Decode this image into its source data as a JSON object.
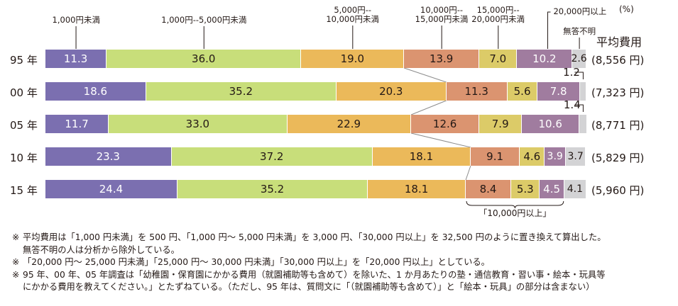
{
  "chart_data": {
    "type": "bar",
    "orientation": "horizontal-stacked-100",
    "unit_label": "(%)",
    "avg_header": "平均費用",
    "categories": [
      "95 年",
      "00 年",
      "05 年",
      "10 年",
      "15 年"
    ],
    "series": [
      {
        "name": "1,000円未満",
        "color": "#7b6fb0",
        "text_color": "#ffffff",
        "values": [
          11.3,
          18.6,
          11.7,
          23.3,
          24.4
        ]
      },
      {
        "name": "1,000円--5,000円未満",
        "color": "#c8de7a",
        "text_color": "#231815",
        "values": [
          36.0,
          35.2,
          33.0,
          37.2,
          35.2
        ]
      },
      {
        "name": "5,000円--10,000円未満",
        "color": "#ebb95a",
        "text_color": "#231815",
        "values": [
          19.0,
          20.3,
          22.9,
          18.1,
          18.1
        ]
      },
      {
        "name": "10,000円--15,000円未満",
        "color": "#db9470",
        "text_color": "#231815",
        "values": [
          13.9,
          11.3,
          12.6,
          9.1,
          8.4
        ]
      },
      {
        "name": "15,000円--20,000円未満",
        "color": "#dccb68",
        "text_color": "#231815",
        "values": [
          7.0,
          5.6,
          7.9,
          4.6,
          5.3
        ]
      },
      {
        "name": "20,000円以上",
        "color": "#a07c9f",
        "text_color": "#ffffff",
        "values": [
          10.2,
          7.8,
          10.6,
          3.9,
          4.5
        ]
      },
      {
        "name": "無答不明",
        "color": "#d3d3d5",
        "text_color": "#231815",
        "values": [
          2.6,
          1.2,
          1.4,
          3.7,
          4.1
        ]
      }
    ],
    "series_label_lines": [
      [
        "1,000円未満"
      ],
      [
        "1,000円--5,000円未満"
      ],
      [
        "5,000円--",
        "10,000円未満"
      ],
      [
        "10,000円--",
        "15,000円未満"
      ],
      [
        "15,000円--",
        "20,000円未満"
      ],
      [
        "20,000円以上"
      ],
      [
        "無答不明"
      ]
    ],
    "average_cost": [
      "(8,556 円)",
      "(7,323 円)",
      "(8,771 円)",
      "(5,829 円)",
      "(5,960 円)"
    ],
    "brace_label": "「10,000円以上」",
    "xlim": [
      0,
      100
    ]
  },
  "notes": [
    {
      "mark": "※",
      "lines": [
        "平均費用は「1,000 円未満」を 500 円、「1,000 円～ 5,000 円未満」を 3,000 円、「30,000 円以上」を 32,500 円のように置き換えて算出した。",
        "無答不明の人は分析から除外している。"
      ]
    },
    {
      "mark": "※",
      "lines": [
        "「20,000 円～ 25,000 円未満」「25,000 円～ 30,000 円未満」「30,000 円以上」を「20,000 円以上」としている。"
      ]
    },
    {
      "mark": "※",
      "lines": [
        "95 年、00 年、05 年調査は「幼稚園・保育園にかかる費用（就園補助等も含めて）を除いた、1 か月あたりの塾・通信教育・習い事・絵本・玩具等",
        "にかかる費用を教えてください。」とたずねている。（ただし、95 年は、質問文に「（就園補助等も含めて）」と「絵本・玩具」の部分は含まない）"
      ]
    }
  ]
}
